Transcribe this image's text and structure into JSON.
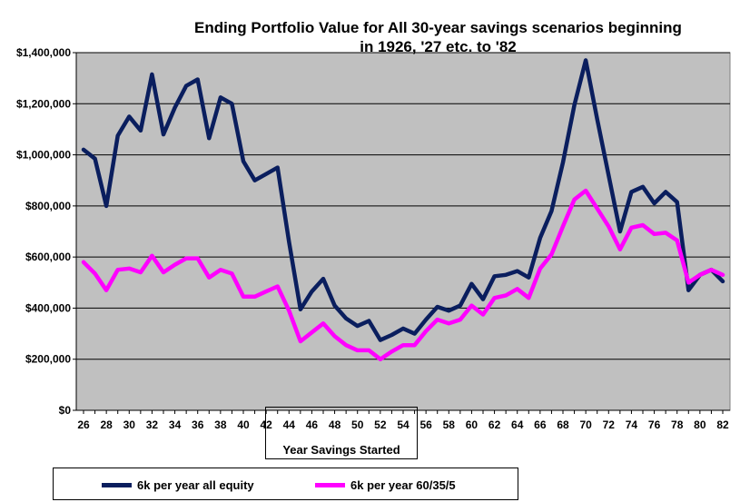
{
  "chart_data": {
    "type": "line",
    "title_line1": "Ending Portfolio Value for All 30-year savings scenarios beginning",
    "title_line2": "in 1926, '27 etc. to '82",
    "xlabel": "Year Savings Started",
    "ylabel": "",
    "ylim": [
      0,
      1400000
    ],
    "y_ticks": [
      0,
      200000,
      400000,
      600000,
      800000,
      1000000,
      1200000,
      1400000
    ],
    "y_tick_labels": [
      "$0",
      "$200,000",
      "$400,000",
      "$600,000",
      "$800,000",
      "$1,000,000",
      "$1,200,000",
      "$1,400,000"
    ],
    "x": [
      26,
      27,
      28,
      29,
      30,
      31,
      32,
      33,
      34,
      35,
      36,
      37,
      38,
      39,
      40,
      41,
      42,
      43,
      44,
      45,
      46,
      47,
      48,
      49,
      50,
      51,
      52,
      53,
      54,
      55,
      56,
      57,
      58,
      59,
      60,
      61,
      62,
      63,
      64,
      65,
      66,
      67,
      68,
      69,
      70,
      71,
      72,
      73,
      74,
      75,
      76,
      77,
      78,
      79,
      80,
      81,
      82
    ],
    "x_tick_labels": [
      "26",
      "28",
      "30",
      "32",
      "34",
      "36",
      "38",
      "40",
      "42",
      "44",
      "46",
      "48",
      "50",
      "52",
      "54",
      "56",
      "58",
      "60",
      "62",
      "64",
      "66",
      "68",
      "70",
      "72",
      "74",
      "76",
      "78",
      "80",
      "82"
    ],
    "x_tick_values": [
      26,
      28,
      30,
      32,
      34,
      36,
      38,
      40,
      42,
      44,
      46,
      48,
      50,
      52,
      54,
      56,
      58,
      60,
      62,
      64,
      66,
      68,
      70,
      72,
      74,
      76,
      78,
      80,
      82
    ],
    "grid": true,
    "plot_background": "#C0C0C0",
    "legend_position": "bottom",
    "series": [
      {
        "name": "6k per year all equity",
        "color": "#0A1E5E",
        "values": [
          1020000,
          985000,
          800000,
          1075000,
          1150000,
          1095000,
          1315000,
          1080000,
          1185000,
          1270000,
          1295000,
          1065000,
          1225000,
          1200000,
          975000,
          900000,
          925000,
          950000,
          660000,
          395000,
          465000,
          515000,
          410000,
          360000,
          330000,
          350000,
          275000,
          295000,
          320000,
          300000,
          355000,
          405000,
          390000,
          410000,
          495000,
          435000,
          525000,
          530000,
          545000,
          520000,
          675000,
          780000,
          970000,
          1195000,
          1370000,
          1140000,
          920000,
          700000,
          855000,
          875000,
          810000,
          855000,
          815000,
          470000,
          530000,
          550000,
          505000
        ]
      },
      {
        "name": "6k per year 60/35/5",
        "color": "#FF00FF",
        "values": [
          580000,
          535000,
          470000,
          550000,
          555000,
          540000,
          605000,
          540000,
          570000,
          595000,
          595000,
          520000,
          550000,
          535000,
          445000,
          445000,
          465000,
          485000,
          390000,
          270000,
          305000,
          340000,
          290000,
          255000,
          235000,
          235000,
          200000,
          230000,
          255000,
          255000,
          310000,
          355000,
          340000,
          355000,
          410000,
          375000,
          440000,
          450000,
          475000,
          440000,
          555000,
          610000,
          720000,
          825000,
          860000,
          790000,
          720000,
          630000,
          715000,
          725000,
          690000,
          695000,
          665000,
          500000,
          530000,
          550000,
          530000
        ]
      }
    ]
  }
}
